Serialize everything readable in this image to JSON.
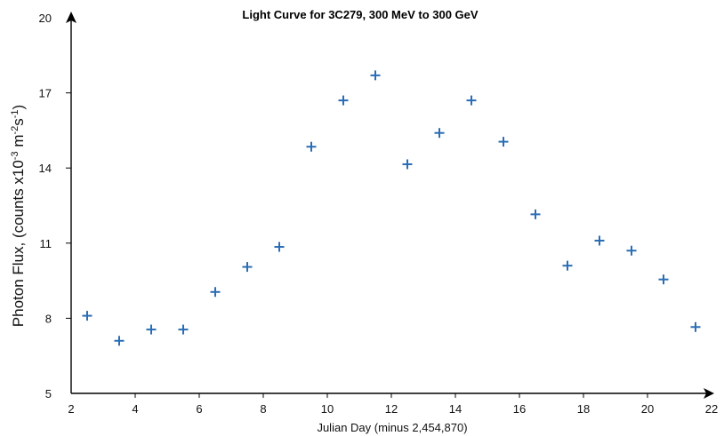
{
  "chart_data": {
    "type": "scatter",
    "title": "Light Curve for 3C279, 300 MeV to 300 GeV",
    "xlabel": "Julian Day (minus 2,454,870)",
    "ylabel_main": "Photon Flux, (counts x10",
    "ylabel_exp1": "-3",
    "ylabel_mid": " m",
    "ylabel_exp2": "-2",
    "ylabel_s": "s",
    "ylabel_exp3": "-1",
    "ylabel_end": ")",
    "xlim": [
      2,
      22
    ],
    "ylim": [
      5,
      20
    ],
    "xticks": [
      2,
      4,
      6,
      8,
      10,
      12,
      14,
      16,
      18,
      20,
      22
    ],
    "yticks": [
      5,
      8,
      11,
      14,
      17,
      20
    ],
    "grid": false,
    "marker": "plus",
    "color": "#2a6db5",
    "points": [
      {
        "x": 2.5,
        "y": 8.1
      },
      {
        "x": 3.5,
        "y": 7.1
      },
      {
        "x": 4.5,
        "y": 7.55
      },
      {
        "x": 5.5,
        "y": 7.55
      },
      {
        "x": 6.5,
        "y": 9.05
      },
      {
        "x": 7.5,
        "y": 10.05
      },
      {
        "x": 8.5,
        "y": 10.85
      },
      {
        "x": 9.5,
        "y": 14.85
      },
      {
        "x": 10.5,
        "y": 16.7
      },
      {
        "x": 11.5,
        "y": 17.7
      },
      {
        "x": 12.5,
        "y": 14.15
      },
      {
        "x": 13.5,
        "y": 15.4
      },
      {
        "x": 14.5,
        "y": 16.7
      },
      {
        "x": 15.5,
        "y": 15.05
      },
      {
        "x": 16.5,
        "y": 12.15
      },
      {
        "x": 17.5,
        "y": 10.1
      },
      {
        "x": 18.5,
        "y": 11.1
      },
      {
        "x": 19.5,
        "y": 10.7
      },
      {
        "x": 20.5,
        "y": 9.55
      },
      {
        "x": 21.5,
        "y": 7.65
      }
    ]
  }
}
